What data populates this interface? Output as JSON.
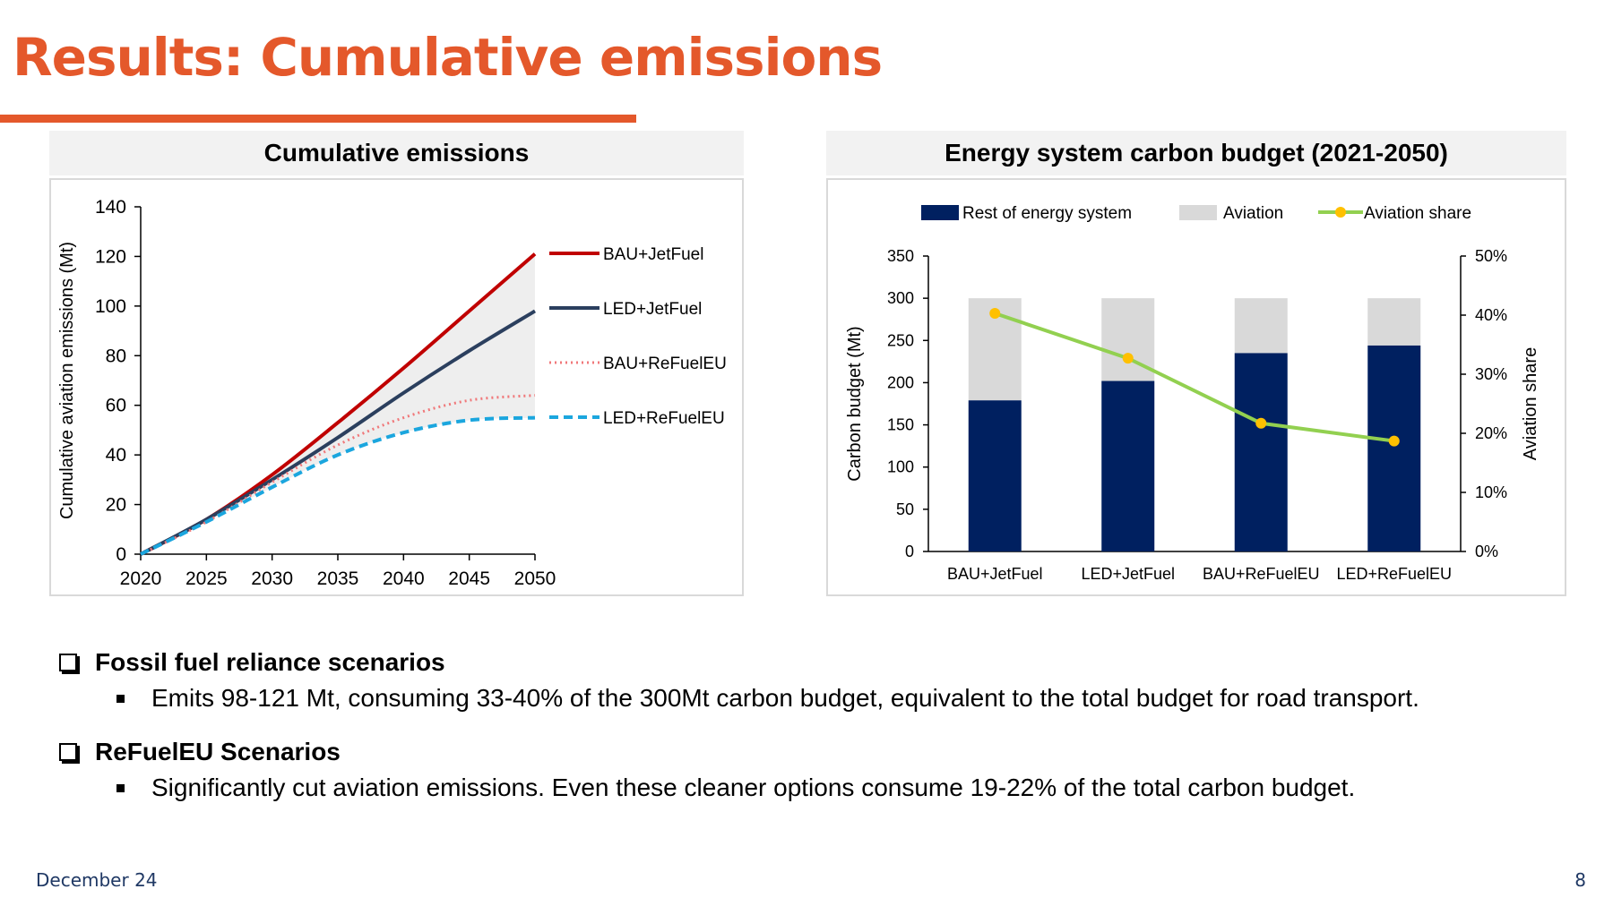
{
  "slide": {
    "title": "Results: Cumulative emissions",
    "footer_date": "December 24",
    "page_number": "8"
  },
  "bullets": [
    {
      "heading": "Fossil fuel reliance scenarios",
      "items": [
        "Emits 98-121 Mt, consuming 33-40% of the 300Mt carbon budget, equivalent to the total budget for road transport."
      ]
    },
    {
      "heading": "ReFuelEU Scenarios",
      "items": [
        "Significantly cut aviation emissions. Even these cleaner options consume 19-22% of the total carbon budget."
      ]
    }
  ],
  "colors": {
    "accent": "#e4582b",
    "BAU+JetFuel": "#c00000",
    "LED+JetFuel": "#2b3f5e",
    "BAU+ReFuelEU": "#f0787a",
    "LED+ReFuelEU": "#1ba6de",
    "rest_of_energy_system": "#002060",
    "aviation": "#d9d9d9",
    "aviation_share": "#92d050",
    "aviation_share_marker": "#ffc000",
    "shaded_band": "#eeeeee"
  },
  "chart_data": [
    {
      "type": "line",
      "title": "Cumulative emissions",
      "xlabel": "",
      "ylabel": "Cumulative aviation emissions (Mt)",
      "xlim": [
        2020,
        2050
      ],
      "ylim": [
        0,
        140
      ],
      "x_ticks": [
        2020,
        2025,
        2030,
        2035,
        2040,
        2045,
        2050
      ],
      "y_ticks": [
        0,
        20,
        40,
        60,
        80,
        100,
        120,
        140
      ],
      "shaded_area_between": [
        "BAU+JetFuel",
        "LED+ReFuelEU"
      ],
      "legend_placement": "right",
      "x": [
        2020,
        2025,
        2030,
        2035,
        2040,
        2045,
        2050
      ],
      "series": [
        {
          "name": "BAU+JetFuel",
          "style": "solid",
          "values": [
            0,
            14,
            32,
            53,
            75,
            98,
            121
          ]
        },
        {
          "name": "LED+JetFuel",
          "style": "solid",
          "values": [
            0,
            14,
            30,
            47,
            65,
            82,
            98
          ]
        },
        {
          "name": "BAU+ReFuelEU",
          "style": "dotted",
          "values": [
            0,
            13,
            29,
            44,
            55,
            62,
            64
          ]
        },
        {
          "name": "LED+ReFuelEU",
          "style": "dashed",
          "values": [
            0,
            13,
            27,
            40,
            49,
            54,
            55
          ]
        }
      ]
    },
    {
      "type": "bar",
      "stacked": true,
      "title": "Energy system carbon budget (2021-2050)",
      "ylabel": "Carbon budget (Mt)",
      "y2label": "Aviation share",
      "categories": [
        "BAU+JetFuel",
        "LED+JetFuel",
        "BAU+ReFuelEU",
        "LED+ReFuelEU"
      ],
      "ylim": [
        0,
        350
      ],
      "y_ticks": [
        0,
        50,
        100,
        150,
        200,
        250,
        300,
        350
      ],
      "y2lim": [
        0,
        0.5
      ],
      "y2_ticks": [
        "0%",
        "10%",
        "20%",
        "30%",
        "40%",
        "50%"
      ],
      "legend_placement": "top",
      "series": [
        {
          "name": "Rest of energy system",
          "type": "bar",
          "values": [
            179,
            202,
            235,
            244
          ]
        },
        {
          "name": "Aviation",
          "type": "bar",
          "values": [
            121,
            98,
            65,
            56
          ]
        },
        {
          "name": "Aviation share",
          "type": "line",
          "axis": "secondary",
          "values": [
            0.403,
            0.327,
            0.217,
            0.187
          ]
        }
      ]
    }
  ]
}
